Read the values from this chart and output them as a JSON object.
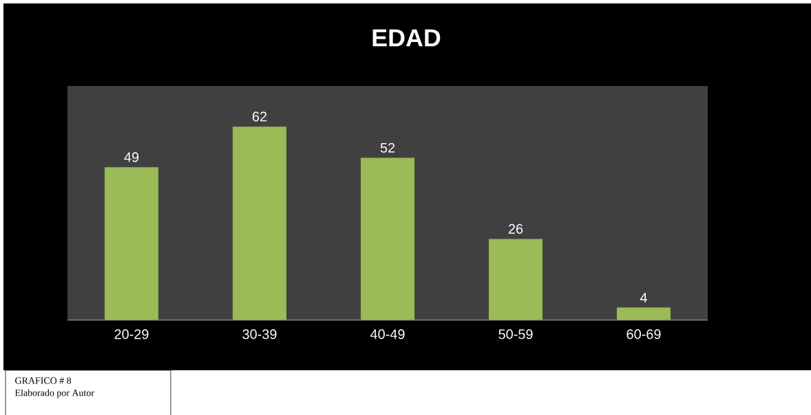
{
  "chart_data": {
    "type": "bar",
    "title": "EDAD",
    "categories": [
      "20-29",
      "30-39",
      "40-49",
      "50-59",
      "60-69"
    ],
    "values": [
      49,
      62,
      52,
      26,
      4
    ],
    "color": "#9bbb59",
    "data_labels": true,
    "annotations": [
      "GRAFICO # 8",
      "Elaborado por Autor"
    ]
  }
}
